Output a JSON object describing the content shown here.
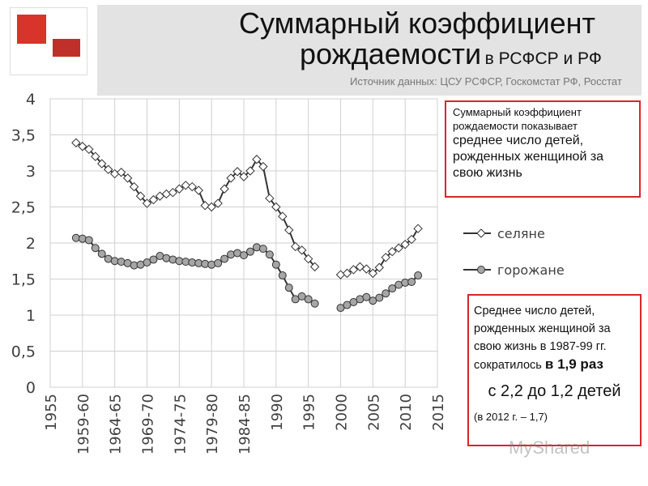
{
  "chart_data": {
    "type": "line",
    "title": [
      "Суммарный коэффициент",
      "рождаемости"
    ],
    "subtitle": "в РСФСР и РФ",
    "source": "Источник данных: ЦСУ РСФСР, Госкомстат РФ, Росстат",
    "x": [
      1959,
      1960,
      1961,
      1962,
      1963,
      1964,
      1965,
      1966,
      1967,
      1968,
      1969,
      1970,
      1971,
      1972,
      1973,
      1974,
      1975,
      1976,
      1977,
      1978,
      1979,
      1980,
      1981,
      1982,
      1983,
      1984,
      1985,
      1986,
      1987,
      1988,
      1989,
      1990,
      1991,
      1992,
      1993,
      1994,
      1995,
      1996,
      1997,
      1998,
      1999,
      2000,
      2001,
      2002,
      2003,
      2004,
      2005,
      2006,
      2007,
      2008,
      2009,
      2010,
      2011,
      2012
    ],
    "series": [
      {
        "name": "селяне",
        "color": "#333333",
        "marker": "diamond",
        "values": [
          3.39,
          3.34,
          3.3,
          3.2,
          3.1,
          3.02,
          2.96,
          2.98,
          2.9,
          2.78,
          2.65,
          2.55,
          2.6,
          2.65,
          2.68,
          2.7,
          2.75,
          2.8,
          2.78,
          2.73,
          2.52,
          2.5,
          2.55,
          2.75,
          2.9,
          2.99,
          2.92,
          3.0,
          3.16,
          3.06,
          2.62,
          2.5,
          2.37,
          2.18,
          1.95,
          1.9,
          1.78,
          1.67,
          null,
          null,
          null,
          1.56,
          1.58,
          1.63,
          1.67,
          1.64,
          1.58,
          1.66,
          1.8,
          1.88,
          1.93,
          1.98,
          2.05,
          2.2
        ]
      },
      {
        "name": "горожане",
        "color": "#333333",
        "marker": "circle",
        "values": [
          2.07,
          2.06,
          2.04,
          1.93,
          1.85,
          1.78,
          1.75,
          1.74,
          1.72,
          1.69,
          1.7,
          1.73,
          1.77,
          1.82,
          1.79,
          1.77,
          1.75,
          1.74,
          1.73,
          1.72,
          1.71,
          1.7,
          1.72,
          1.78,
          1.84,
          1.86,
          1.83,
          1.88,
          1.94,
          1.92,
          1.84,
          1.7,
          1.55,
          1.38,
          1.22,
          1.26,
          1.22,
          1.16,
          null,
          null,
          null,
          1.1,
          1.14,
          1.18,
          1.22,
          1.25,
          1.2,
          1.24,
          1.3,
          1.37,
          1.42,
          1.45,
          1.46,
          1.55
        ]
      }
    ],
    "xlim": [
      1955,
      2015
    ],
    "xticks": [
      1955,
      {
        "value": 1960,
        "label": "1959-60"
      },
      {
        "value": 1965,
        "label": "1964-65"
      },
      {
        "value": 1970,
        "label": "1969-70"
      },
      {
        "value": 1975,
        "label": "1974-75"
      },
      {
        "value": 1980,
        "label": "1979-80"
      },
      {
        "value": 1985,
        "label": "1984-85"
      },
      1990,
      1995,
      2000,
      2005,
      2010,
      2015
    ],
    "ylim": [
      0,
      4
    ],
    "yticks": [
      0,
      {
        "value": 0.5,
        "label": "0,5"
      },
      1,
      {
        "value": 1.5,
        "label": "1,5"
      },
      2,
      {
        "value": 2.5,
        "label": "2,5"
      },
      3,
      {
        "value": 3.5,
        "label": "3,5"
      },
      4
    ],
    "grid": true,
    "annotations": [
      [
        "Суммарный коэффициент рождаемости показывает",
        "среднее число детей, рожденных женщиной за свою жизнь"
      ],
      [
        "Среднее число детей, рожденных женщиной за свою жизнь в 1987-99 гг. сократилось",
        "в 1,9 раз",
        "с 2,2 до 1,2 детей",
        "(в 2012 г. – 1,7)"
      ]
    ],
    "watermark": "MyShared"
  }
}
